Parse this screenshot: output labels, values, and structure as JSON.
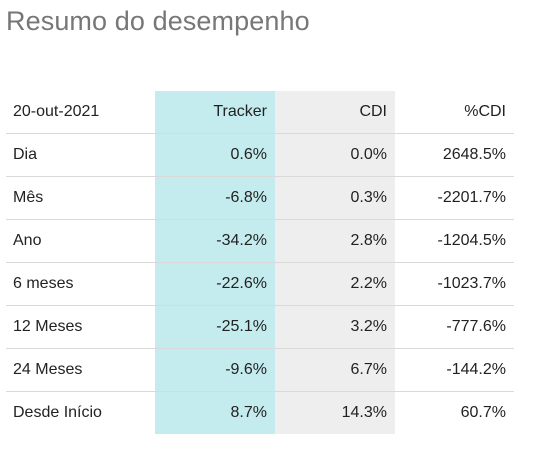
{
  "title": "Resumo do desempenho",
  "table": {
    "headers": [
      "20-out-2021",
      "Tracker",
      "CDI",
      "%CDI"
    ],
    "rows": [
      {
        "label": "Dia",
        "tracker": "0.6%",
        "cdi": "0.0%",
        "pct_cdi": "2648.5%"
      },
      {
        "label": "Mês",
        "tracker": "-6.8%",
        "cdi": "0.3%",
        "pct_cdi": "-2201.7%"
      },
      {
        "label": "Ano",
        "tracker": "-34.2%",
        "cdi": "2.8%",
        "pct_cdi": "-1204.5%"
      },
      {
        "label": "6 meses",
        "tracker": "-22.6%",
        "cdi": "2.2%",
        "pct_cdi": "-1023.7%"
      },
      {
        "label": "12 Meses",
        "tracker": "-25.1%",
        "cdi": "3.2%",
        "pct_cdi": "-777.6%"
      },
      {
        "label": "24 Meses",
        "tracker": "-9.6%",
        "cdi": "6.7%",
        "pct_cdi": "-144.2%"
      },
      {
        "label": "Desde Início",
        "tracker": "8.7%",
        "cdi": "14.3%",
        "pct_cdi": "60.7%"
      }
    ]
  },
  "colors": {
    "title": "#777777",
    "tracker_column": "#c4ebee",
    "cdi_column": "#eeeeee",
    "row_divider": "#d9d9d9"
  }
}
